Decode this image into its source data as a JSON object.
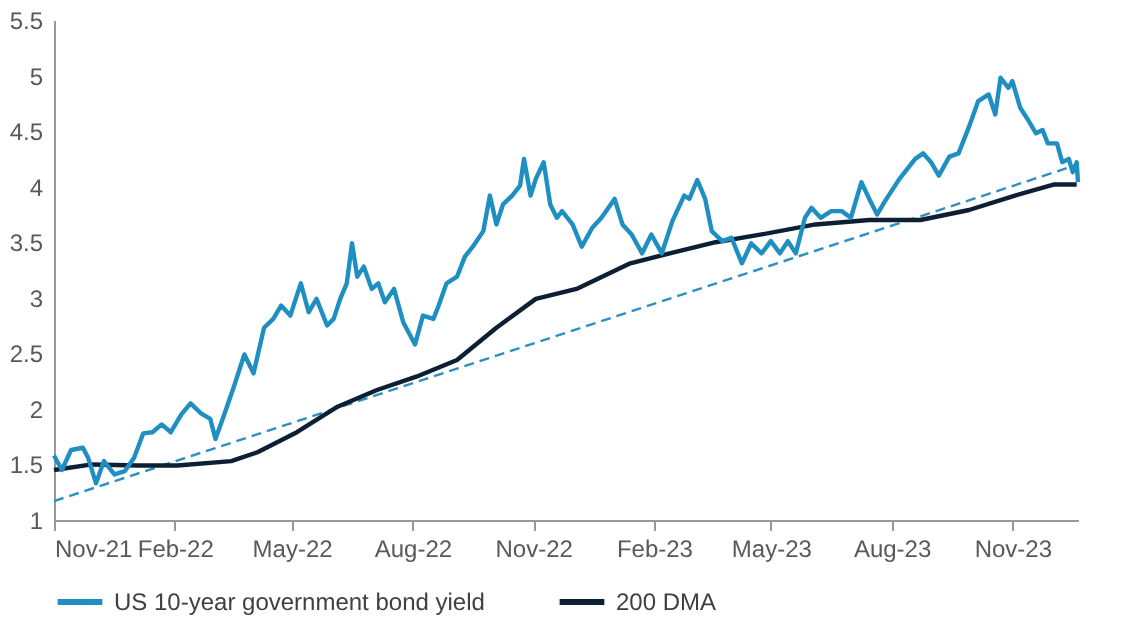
{
  "chart_data": {
    "type": "line",
    "legend": "bottom",
    "marker": "none",
    "xlim": [
      "2021-11-01",
      "2023-12-21"
    ],
    "ylim": [
      1,
      5.5
    ],
    "xticks": [
      {
        "value": "2021-11-01",
        "label": "Nov-21"
      },
      {
        "value": "2022-02-01",
        "label": "Feb-22"
      },
      {
        "value": "2022-05-01",
        "label": "May-22"
      },
      {
        "value": "2022-08-01",
        "label": "Aug-22"
      },
      {
        "value": "2022-11-01",
        "label": "Nov-22"
      },
      {
        "value": "2023-02-01",
        "label": "Feb-23"
      },
      {
        "value": "2023-05-01",
        "label": "May-23"
      },
      {
        "value": "2023-08-01",
        "label": "Aug-23"
      },
      {
        "value": "2023-11-01",
        "label": "Nov-23"
      }
    ],
    "yticks": [
      1,
      1.5,
      2,
      2.5,
      3,
      3.5,
      4,
      4.5,
      5,
      5.5
    ],
    "series": [
      {
        "name": "US 10-year government bond yield",
        "color": "#1f8fc1",
        "x": [
          "2021-11-01",
          "2021-11-07",
          "2021-11-14",
          "2021-11-23",
          "2021-11-27",
          "2021-12-03",
          "2021-12-09",
          "2021-12-17",
          "2021-12-25",
          "2022-01-01",
          "2022-01-08",
          "2022-01-15",
          "2022-01-22",
          "2022-01-29",
          "2022-02-06",
          "2022-02-13",
          "2022-02-21",
          "2022-02-28",
          "2022-03-04",
          "2022-03-11",
          "2022-03-18",
          "2022-03-26",
          "2022-04-02",
          "2022-04-10",
          "2022-04-17",
          "2022-04-23",
          "2022-04-30",
          "2022-05-08",
          "2022-05-14",
          "2022-05-20",
          "2022-05-28",
          "2022-06-02",
          "2022-06-07",
          "2022-06-12",
          "2022-06-16",
          "2022-06-20",
          "2022-06-25",
          "2022-07-01",
          "2022-07-06",
          "2022-07-11",
          "2022-07-18",
          "2022-07-25",
          "2022-08-03",
          "2022-08-09",
          "2022-08-17",
          "2022-08-21",
          "2022-08-27",
          "2022-09-04",
          "2022-09-10",
          "2022-09-16",
          "2022-09-24",
          "2022-09-29",
          "2022-10-04",
          "2022-10-09",
          "2022-10-16",
          "2022-10-22",
          "2022-10-25",
          "2022-10-30",
          "2022-11-03",
          "2022-11-09",
          "2022-11-14",
          "2022-11-19",
          "2022-11-23",
          "2022-12-01",
          "2022-12-08",
          "2022-12-16",
          "2022-12-23",
          "2023-01-02",
          "2023-01-08",
          "2023-01-15",
          "2023-01-23",
          "2023-01-30",
          "2023-02-07",
          "2023-02-15",
          "2023-02-24",
          "2023-02-28",
          "2023-03-06",
          "2023-03-12",
          "2023-03-17",
          "2023-03-25",
          "2023-04-01",
          "2023-04-09",
          "2023-04-16",
          "2023-04-24",
          "2023-05-01",
          "2023-05-08",
          "2023-05-14",
          "2023-05-20",
          "2023-05-27",
          "2023-06-01",
          "2023-06-08",
          "2023-06-16",
          "2023-06-24",
          "2023-07-01",
          "2023-07-09",
          "2023-07-15",
          "2023-07-21",
          "2023-07-27",
          "2023-08-07",
          "2023-08-13",
          "2023-08-19",
          "2023-08-25",
          "2023-08-31",
          "2023-09-06",
          "2023-09-14",
          "2023-09-21",
          "2023-09-29",
          "2023-10-06",
          "2023-10-14",
          "2023-10-19",
          "2023-10-23",
          "2023-10-29",
          "2023-11-01",
          "2023-11-07",
          "2023-11-13",
          "2023-11-19",
          "2023-11-24",
          "2023-11-28",
          "2023-12-05",
          "2023-12-09",
          "2023-12-14",
          "2023-12-17",
          "2023-12-20",
          "2023-12-21"
        ],
        "values": [
          1.58,
          1.45,
          1.63,
          1.65,
          1.56,
          1.33,
          1.53,
          1.41,
          1.44,
          1.56,
          1.78,
          1.79,
          1.86,
          1.79,
          1.95,
          2.05,
          1.96,
          1.91,
          1.73,
          1.96,
          2.2,
          2.49,
          2.32,
          2.73,
          2.81,
          2.93,
          2.84,
          3.13,
          2.87,
          2.99,
          2.75,
          2.81,
          2.99,
          3.13,
          3.49,
          3.19,
          3.28,
          3.08,
          3.13,
          2.96,
          3.08,
          2.78,
          2.58,
          2.84,
          2.81,
          2.93,
          3.13,
          3.19,
          3.37,
          3.46,
          3.6,
          3.92,
          3.66,
          3.84,
          3.92,
          4.01,
          4.25,
          3.92,
          4.07,
          4.22,
          3.84,
          3.72,
          3.78,
          3.66,
          3.46,
          3.63,
          3.72,
          3.89,
          3.66,
          3.57,
          3.4,
          3.57,
          3.4,
          3.69,
          3.92,
          3.89,
          4.06,
          3.89,
          3.6,
          3.51,
          3.54,
          3.31,
          3.49,
          3.4,
          3.51,
          3.4,
          3.51,
          3.4,
          3.72,
          3.81,
          3.72,
          3.78,
          3.78,
          3.72,
          4.04,
          3.89,
          3.75,
          3.87,
          4.07,
          4.16,
          4.25,
          4.3,
          4.22,
          4.1,
          4.27,
          4.3,
          4.54,
          4.77,
          4.83,
          4.65,
          4.98,
          4.89,
          4.95,
          4.71,
          4.6,
          4.48,
          4.51,
          4.39,
          4.39,
          4.22,
          4.25,
          4.13,
          4.22,
          4.04
        ]
      },
      {
        "name": "200 DMA",
        "color": "#0d1f33",
        "x": [
          "2021-11-01",
          "2021-11-30",
          "2022-01-04",
          "2022-02-03",
          "2022-03-16",
          "2022-04-05",
          "2022-05-05",
          "2022-06-05",
          "2022-07-05",
          "2022-08-04",
          "2022-09-04",
          "2022-10-04",
          "2022-11-03",
          "2022-12-04",
          "2023-01-14",
          "2023-02-13",
          "2023-03-20",
          "2023-04-24",
          "2023-06-04",
          "2023-07-15",
          "2023-08-23",
          "2023-09-29",
          "2023-11-03",
          "2023-12-03",
          "2023-12-20"
        ],
        "values": [
          1.45,
          1.5,
          1.49,
          1.49,
          1.53,
          1.61,
          1.79,
          2.02,
          2.17,
          2.29,
          2.44,
          2.73,
          2.99,
          3.08,
          3.31,
          3.4,
          3.5,
          3.57,
          3.66,
          3.7,
          3.7,
          3.79,
          3.92,
          4.02,
          4.02
        ]
      },
      {
        "color": "#2e8fc0",
        "line_style": "dashed",
        "x": [
          "2021-11-01",
          "2023-12-21"
        ],
        "values": [
          1.17,
          4.2
        ]
      }
    ]
  }
}
